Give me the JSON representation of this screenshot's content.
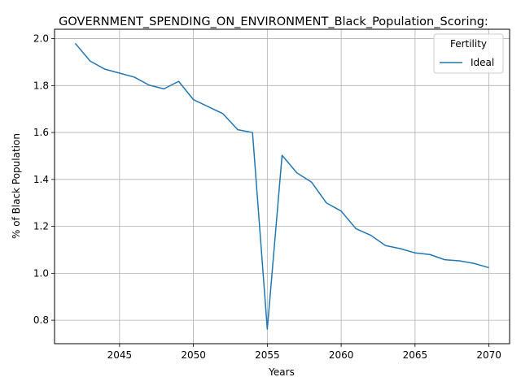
{
  "chart_data": {
    "type": "line",
    "title": "GOVERNMENT_SPENDING_ON_ENVIRONMENT_Black_Population_Scoring:",
    "xlabel": "Years",
    "ylabel": "% of Black Population",
    "xlim": [
      2040.6,
      2071.4
    ],
    "ylim": [
      0.7,
      2.04
    ],
    "x_ticks": [
      2045,
      2050,
      2055,
      2060,
      2065,
      2070
    ],
    "y_ticks": [
      0.8,
      1.0,
      1.2,
      1.4,
      1.6,
      1.8,
      2.0
    ],
    "y_tick_labels": [
      "0.8",
      "1.0",
      "1.2",
      "1.4",
      "1.6",
      "1.8",
      "2.0"
    ],
    "grid": true,
    "legend": {
      "title": "Fertility",
      "position": "top-right"
    },
    "x": [
      2042,
      2043,
      2044,
      2045,
      2046,
      2047,
      2048,
      2049,
      2050,
      2051,
      2052,
      2053,
      2054,
      2055,
      2056,
      2057,
      2058,
      2059,
      2060,
      2061,
      2062,
      2063,
      2064,
      2065,
      2066,
      2067,
      2068,
      2069,
      2070
    ],
    "series": [
      {
        "name": "Ideal",
        "color": "#1f77b4",
        "values": [
          1.98,
          1.905,
          1.87,
          1.853,
          1.836,
          1.802,
          1.786,
          1.818,
          1.74,
          1.71,
          1.68,
          1.612,
          1.6,
          0.762,
          1.503,
          1.428,
          1.388,
          1.3,
          1.265,
          1.19,
          1.162,
          1.118,
          1.105,
          1.087,
          1.08,
          1.058,
          1.053,
          1.042,
          1.024
        ]
      }
    ]
  }
}
